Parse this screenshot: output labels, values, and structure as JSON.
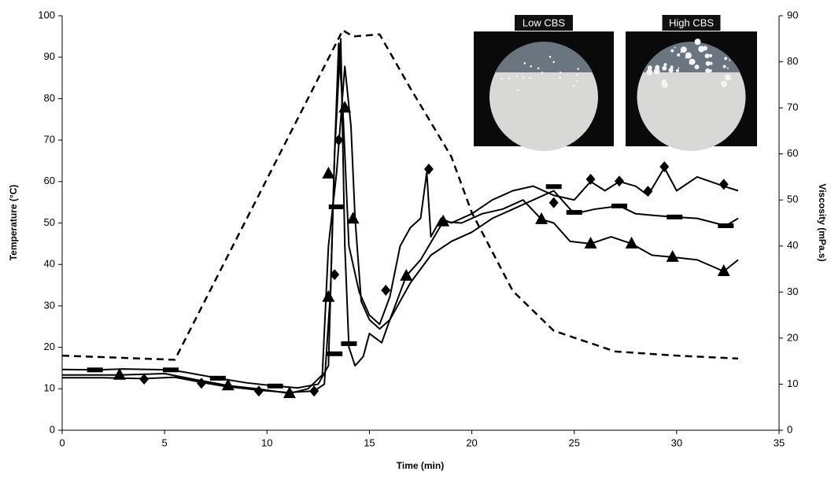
{
  "chart_data": {
    "type": "line",
    "xlabel": "Time (min)",
    "ylabel": "Temperature (°C)",
    "y2label": "Viscosity (mPa.s)",
    "xlim": [
      0,
      35
    ],
    "xticks": [
      0,
      5,
      10,
      15,
      20,
      25,
      30,
      35
    ],
    "ylim": [
      0,
      100
    ],
    "yticks": [
      0,
      10,
      20,
      30,
      40,
      50,
      60,
      70,
      80,
      90,
      100
    ],
    "y2lim": [
      0,
      90
    ],
    "y2ticks": [
      0,
      10,
      20,
      30,
      40,
      50,
      60,
      70,
      80,
      90
    ],
    "insets": [
      {
        "label": "Low CBS"
      },
      {
        "label": "High CBS"
      }
    ],
    "series": [
      {
        "color": "#000000",
        "dashed": true,
        "line": true,
        "x": [
          0,
          5.5,
          13.7,
          14.2,
          15.5,
          17,
          19,
          20,
          22,
          24,
          27,
          30,
          33
        ],
        "values": [
          18,
          17,
          96.5,
          95,
          95.5,
          82.5,
          66,
          52.5,
          33.6,
          24,
          19,
          18,
          17.3
        ]
      },
      {
        "color": "#000000",
        "axis": "y2",
        "line": true,
        "x": [
          0,
          2,
          4,
          5.5,
          6.8,
          8,
          9.6,
          11,
          12.3,
          12.8,
          13.1,
          13.3,
          13.5,
          13.7,
          14,
          14.5,
          15,
          15.5,
          16,
          16.5,
          17,
          17.5,
          17.8,
          18,
          18.5,
          19,
          20,
          21,
          22,
          23,
          24,
          25,
          25.8,
          26.5,
          27.2,
          28,
          28.6,
          29.4,
          30,
          31,
          32.3,
          33
        ],
        "values": [
          11.4,
          11.4,
          11.2,
          11.5,
          10.4,
          9.5,
          8.7,
          8.2,
          8.5,
          10,
          30,
          60,
          84,
          70,
          40,
          30,
          25,
          23,
          29,
          40,
          44,
          46,
          56,
          42,
          46,
          45,
          47,
          50,
          52,
          53,
          51,
          50,
          54,
          52,
          54,
          53,
          51,
          57,
          52,
          55,
          53,
          52
        ]
      },
      {
        "color": "#000000",
        "axis": "y2",
        "line": false,
        "marker": "diamond",
        "x": [
          4,
          6.8,
          9.6,
          12.3,
          13.3,
          13.5,
          15.8,
          17.9,
          24,
          25.8,
          27.2,
          28.6,
          29.4,
          32.3
        ],
        "values": [
          11.1,
          10.2,
          8.5,
          8.5,
          33.8,
          63,
          30.4,
          56.7,
          49.4,
          54.5,
          54.1,
          51.9,
          57.2,
          53.4
        ]
      },
      {
        "color": "#000000",
        "axis": "y2",
        "line": true,
        "x": [
          0,
          1.6,
          3,
          5.3,
          6,
          7.6,
          9,
          10.4,
          11.5,
          12.5,
          13,
          13.3,
          13.6,
          13.8,
          14,
          14.3,
          14.7,
          15,
          15.3,
          15.6,
          16,
          17,
          18,
          19,
          20,
          21,
          22,
          23,
          24,
          25,
          26,
          27.2,
          28,
          29,
          29.9,
          31,
          32.4,
          33
        ],
        "values": [
          13.2,
          13.1,
          13.3,
          13.1,
          12.6,
          11.3,
          10.3,
          9.6,
          9.2,
          10,
          14,
          60,
          85,
          40,
          18,
          14,
          16,
          21,
          20,
          19,
          24,
          32,
          38,
          41,
          43,
          46,
          48,
          50,
          52,
          47,
          48,
          48.7,
          47,
          46.6,
          46.3,
          46,
          44.4,
          46
        ]
      },
      {
        "color": "#000000",
        "axis": "y2",
        "line": false,
        "marker": "dash",
        "x": [
          1.6,
          5.3,
          7.6,
          10.4,
          13.3,
          13.4,
          14,
          24,
          25,
          27.2,
          29.9,
          32.4
        ],
        "values": [
          13.1,
          13.1,
          11.3,
          9.6,
          16.6,
          48.5,
          18.8,
          52.9,
          47.3,
          48.7,
          46.3,
          44.4
        ]
      },
      {
        "color": "#000000",
        "axis": "y2",
        "line": true,
        "x": [
          0,
          2.8,
          5,
          6.5,
          8.1,
          9.5,
          11.1,
          12,
          12.7,
          13,
          13.4,
          13.8,
          14.1,
          14.3,
          14.6,
          15,
          15.5,
          16,
          16.8,
          17.5,
          18.6,
          19.5,
          20.5,
          21.5,
          22.5,
          23.4,
          24,
          24.8,
          25.8,
          26.8,
          27.8,
          28.8,
          29.8,
          31,
          32.3,
          33
        ],
        "values": [
          12,
          12,
          12.3,
          11,
          9.7,
          9,
          8,
          9,
          12,
          40,
          56,
          79,
          66,
          46,
          28,
          24,
          22,
          24,
          33.5,
          37,
          45.3,
          45,
          47,
          48,
          50,
          45.8,
          45,
          41,
          40.5,
          42,
          40.5,
          38,
          37.6,
          37,
          34.5,
          37
        ]
      },
      {
        "color": "#000000",
        "axis": "y2",
        "line": false,
        "marker": "triangle",
        "x": [
          2.8,
          8.1,
          11.1,
          13,
          13,
          13.8,
          14.2,
          16.8,
          18.6,
          23.4,
          25.8,
          27.8,
          29.8,
          32.3
        ],
        "values": [
          12,
          9.7,
          8,
          28.9,
          55.7,
          70,
          45.9,
          33.5,
          45.3,
          45.8,
          40.5,
          40.5,
          37.6,
          34.5
        ]
      }
    ]
  }
}
